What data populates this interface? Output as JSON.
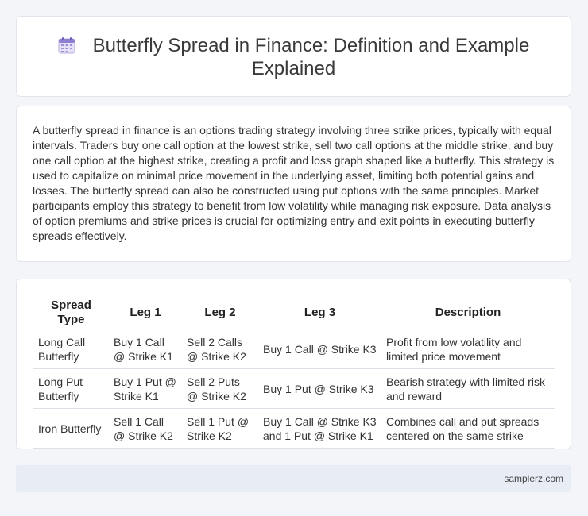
{
  "header": {
    "title": "Butterfly Spread in Finance: Definition and Example Explained",
    "icon": "calendar-icon"
  },
  "description": "A butterfly spread in finance is an options trading strategy involving three strike prices, typically with equal intervals. Traders buy one call option at the lowest strike, sell two call options at the middle strike, and buy one call option at the highest strike, creating a profit and loss graph shaped like a butterfly. This strategy is used to capitalize on minimal price movement in the underlying asset, limiting both potential gains and losses. The butterfly spread can also be constructed using put options with the same principles. Market participants employ this strategy to benefit from low volatility while managing risk exposure. Data analysis of option premiums and strike prices is crucial for optimizing entry and exit points in executing butterfly spreads effectively.",
  "table": {
    "headers": [
      "Spread Type",
      "Leg 1",
      "Leg 2",
      "Leg 3",
      "Description"
    ],
    "rows": [
      [
        "Long Call Butterfly",
        "Buy 1 Call @ Strike K1",
        "Sell 2 Calls @ Strike K2",
        "Buy 1 Call @ Strike K3",
        "Profit from low volatility and limited price movement"
      ],
      [
        "Long Put Butterfly",
        "Buy 1 Put @ Strike K1",
        "Sell 2 Puts @ Strike K2",
        "Buy 1 Put @ Strike K3",
        "Bearish strategy with limited risk and reward"
      ],
      [
        "Iron Butterfly",
        "Sell 1 Call @ Strike K2",
        "Sell 1 Put @ Strike K2",
        "Buy 1 Call @ Strike K3 and 1 Put @ Strike K1",
        "Combines call and put spreads centered on the same strike"
      ]
    ]
  },
  "footer": {
    "site": "samplerz.com"
  }
}
